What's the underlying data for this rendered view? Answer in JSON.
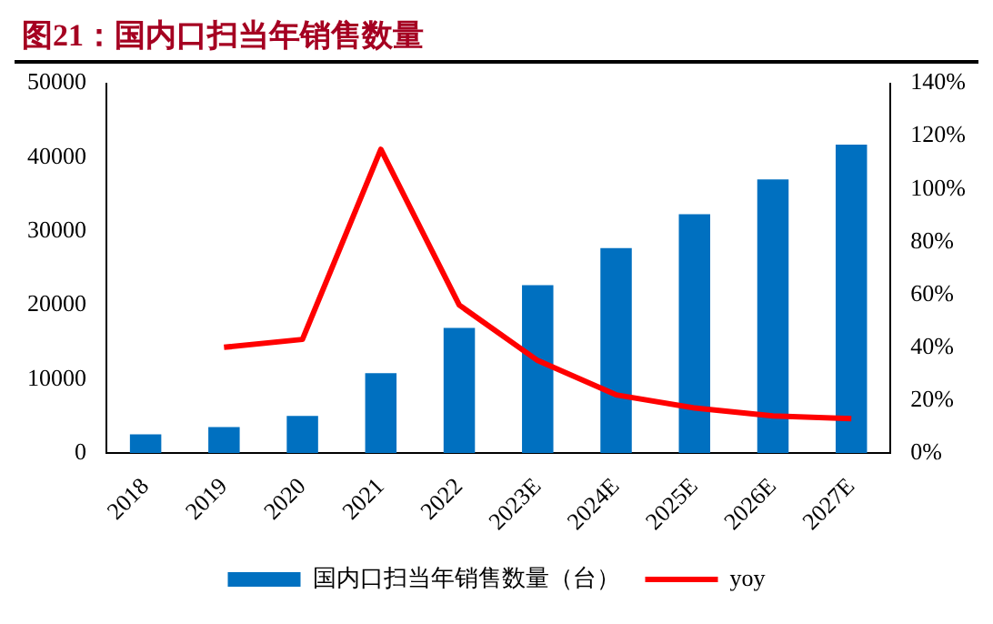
{
  "chart_data": {
    "type": "bar",
    "title": "图21：国内口扫当年销售数量",
    "categories": [
      "2018",
      "2019",
      "2020",
      "2021",
      "2022",
      "2023E",
      "2024E",
      "2025E",
      "2026E",
      "2027E"
    ],
    "series": [
      {
        "name": "国内口扫当年销售数量（台）",
        "color": "#0070c0",
        "values": [
          2500,
          3500,
          5000,
          10800,
          16900,
          22700,
          27700,
          32300,
          37000,
          41700
        ]
      },
      {
        "name": "yoy",
        "type": "line",
        "axis": "y2",
        "color": "#ff0000",
        "values": [
          null,
          40,
          43,
          115,
          56,
          35,
          22,
          17,
          14,
          13
        ]
      }
    ],
    "ylim": [
      0,
      50000
    ],
    "yticks": [
      0,
      10000,
      20000,
      30000,
      40000,
      50000
    ],
    "y2lim": [
      0,
      140
    ],
    "y2ticks": [
      {
        "value": 0,
        "label": "0%"
      },
      {
        "value": 20,
        "label": "20%"
      },
      {
        "value": 40,
        "label": "40%"
      },
      {
        "value": 60,
        "label": "60%"
      },
      {
        "value": 80,
        "label": "80%"
      },
      {
        "value": 100,
        "label": "100%"
      },
      {
        "value": 120,
        "label": "120%"
      },
      {
        "value": 140,
        "label": "140%"
      }
    ],
    "grid": false,
    "legend": "bottom",
    "marker": "none"
  }
}
